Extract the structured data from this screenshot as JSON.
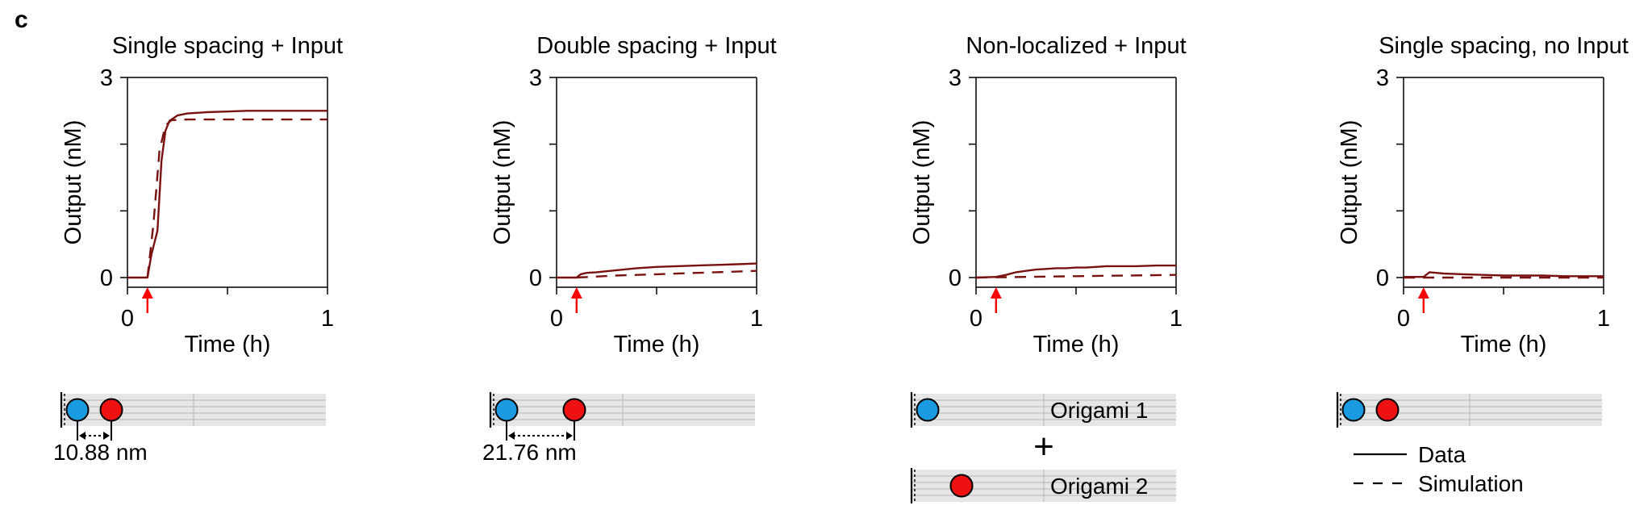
{
  "panel_letter": "c",
  "colors": {
    "series": "#7a1111",
    "arrow": "#ff0000",
    "blue_dot": "#1a9ae0",
    "red_dot": "#ee1111",
    "origami_fill": "#e6e6e6",
    "origami_line": "#b5b5b5"
  },
  "chart_data": [
    {
      "type": "line",
      "title": "Single spacing + Input",
      "xlabel": "Time (h)",
      "ylabel": "Output (nM)",
      "xlim": [
        0,
        1
      ],
      "ylim": [
        0,
        3
      ],
      "xticks": [
        "0",
        "1"
      ],
      "yticks": [
        "0",
        "3"
      ],
      "input_time_h": 0.1,
      "series": [
        {
          "name": "Data",
          "style": "solid",
          "x": [
            0,
            0.05,
            0.1,
            0.12,
            0.15,
            0.17,
            0.19,
            0.21,
            0.25,
            0.3,
            0.4,
            0.5,
            0.6,
            0.7,
            0.8,
            0.9,
            1.0
          ],
          "y": [
            0,
            0,
            0,
            0.35,
            0.7,
            1.75,
            2.2,
            2.35,
            2.43,
            2.46,
            2.48,
            2.49,
            2.5,
            2.5,
            2.5,
            2.5,
            2.5
          ]
        },
        {
          "name": "Simulation",
          "style": "dashed",
          "x": [
            0.1,
            0.13,
            0.16,
            0.19,
            0.22,
            0.3,
            0.5,
            0.75,
            1.0
          ],
          "y": [
            0,
            0.8,
            1.9,
            2.28,
            2.36,
            2.37,
            2.37,
            2.37,
            2.37
          ]
        }
      ],
      "schematic": {
        "type": "single-origami",
        "dots": [
          "blue",
          "red"
        ],
        "dot_spacing": 1,
        "spacing_label": "10.88 nm"
      }
    },
    {
      "type": "line",
      "title": "Double spacing + Input",
      "xlabel": "Time (h)",
      "ylabel": "Output (nM)",
      "xlim": [
        0,
        1
      ],
      "ylim": [
        0,
        3
      ],
      "xticks": [
        "0",
        "1"
      ],
      "yticks": [
        "0",
        "3"
      ],
      "input_time_h": 0.1,
      "series": [
        {
          "name": "Data",
          "style": "solid",
          "x": [
            0,
            0.05,
            0.1,
            0.12,
            0.15,
            0.2,
            0.3,
            0.4,
            0.5,
            0.6,
            0.7,
            0.8,
            0.9,
            1.0
          ],
          "y": [
            0,
            0,
            0,
            0.05,
            0.07,
            0.08,
            0.11,
            0.14,
            0.16,
            0.17,
            0.18,
            0.19,
            0.2,
            0.21
          ]
        },
        {
          "name": "Simulation",
          "style": "dashed",
          "x": [
            0.1,
            0.3,
            0.5,
            0.7,
            0.9,
            1.0
          ],
          "y": [
            0,
            0.03,
            0.05,
            0.07,
            0.09,
            0.1
          ]
        }
      ],
      "schematic": {
        "type": "single-origami",
        "dots": [
          "blue",
          "red"
        ],
        "dot_spacing": 2,
        "spacing_label": "21.76 nm"
      }
    },
    {
      "type": "line",
      "title": "Non-localized + Input",
      "xlabel": "Time (h)",
      "ylabel": "Output (nM)",
      "xlim": [
        0,
        1
      ],
      "ylim": [
        0,
        3
      ],
      "xticks": [
        "0",
        "1"
      ],
      "yticks": [
        "0",
        "3"
      ],
      "input_time_h": 0.1,
      "series": [
        {
          "name": "Data",
          "style": "solid",
          "x": [
            0,
            0.1,
            0.15,
            0.2,
            0.25,
            0.3,
            0.35,
            0.4,
            0.45,
            0.5,
            0.55,
            0.6,
            0.65,
            0.7,
            0.8,
            0.9,
            1.0
          ],
          "y": [
            0,
            0.01,
            0.04,
            0.08,
            0.1,
            0.12,
            0.13,
            0.14,
            0.14,
            0.15,
            0.15,
            0.16,
            0.17,
            0.17,
            0.17,
            0.18,
            0.18
          ]
        },
        {
          "name": "Simulation",
          "style": "dashed",
          "x": [
            0.0,
            0.25,
            0.5,
            0.75,
            1.0
          ],
          "y": [
            0,
            0.01,
            0.02,
            0.03,
            0.04
          ]
        }
      ],
      "schematic": {
        "type": "two-origami",
        "origami_1_label": "Origami 1",
        "origami_2_label": "Origami 2",
        "plus": "+"
      }
    },
    {
      "type": "line",
      "title": "Single spacing, no Input",
      "xlabel": "Time (h)",
      "ylabel": "Output (nM)",
      "xlim": [
        0,
        1
      ],
      "ylim": [
        0,
        3
      ],
      "xticks": [
        "0",
        "1"
      ],
      "yticks": [
        "0",
        "3"
      ],
      "input_time_h": 0.1,
      "series": [
        {
          "name": "Data",
          "style": "solid",
          "x": [
            0,
            0.1,
            0.13,
            0.2,
            0.3,
            0.4,
            0.5,
            0.6,
            0.7,
            0.8,
            0.9,
            1.0
          ],
          "y": [
            0.01,
            0.01,
            0.08,
            0.06,
            0.05,
            0.04,
            0.03,
            0.03,
            0.03,
            0.02,
            0.02,
            0.02
          ]
        },
        {
          "name": "Simulation",
          "style": "dashed",
          "x": [
            0.0,
            0.5,
            1.0
          ],
          "y": [
            0.0,
            0.0,
            0.0
          ]
        }
      ],
      "schematic": {
        "type": "single-origami",
        "dots": [
          "blue",
          "red"
        ],
        "dot_spacing": 1,
        "spacing_label": ""
      }
    }
  ],
  "legend": {
    "items": [
      {
        "label": "Data",
        "style": "solid"
      },
      {
        "label": "Simulation",
        "style": "dashed"
      }
    ]
  }
}
